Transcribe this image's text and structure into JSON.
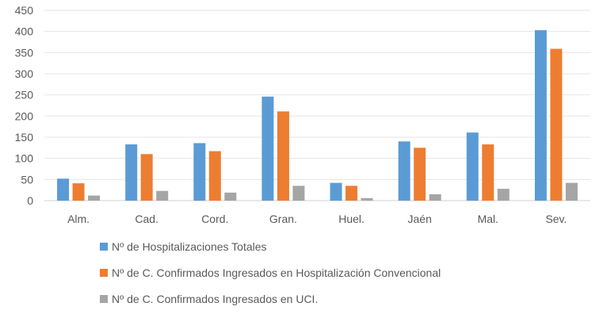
{
  "chart_data": {
    "type": "bar",
    "title": "",
    "xlabel": "",
    "ylabel": "",
    "ylim": [
      0,
      450
    ],
    "yticks": [
      0,
      50,
      100,
      150,
      200,
      250,
      300,
      350,
      400,
      450
    ],
    "grid": true,
    "legend_position": "bottom",
    "categories": [
      "Alm.",
      "Cad.",
      "Cord.",
      "Gran.",
      "Huel.",
      "Jaén",
      "Mal.",
      "Sev."
    ],
    "series": [
      {
        "name": "Nº de Hospitalizaciones Totales",
        "color": "#5B9BD5",
        "values": [
          52,
          133,
          136,
          246,
          42,
          140,
          161,
          403
        ]
      },
      {
        "name": "Nº de C. Confirmados Ingresados en Hospitalización Convencional",
        "color": "#ED7D31",
        "values": [
          41,
          110,
          117,
          211,
          35,
          125,
          133,
          359
        ]
      },
      {
        "name": "Nº de C. Confirmados Ingresados en UCI.",
        "color": "#A5A5A5",
        "values": [
          12,
          23,
          19,
          35,
          6,
          15,
          28,
          42
        ]
      }
    ]
  }
}
